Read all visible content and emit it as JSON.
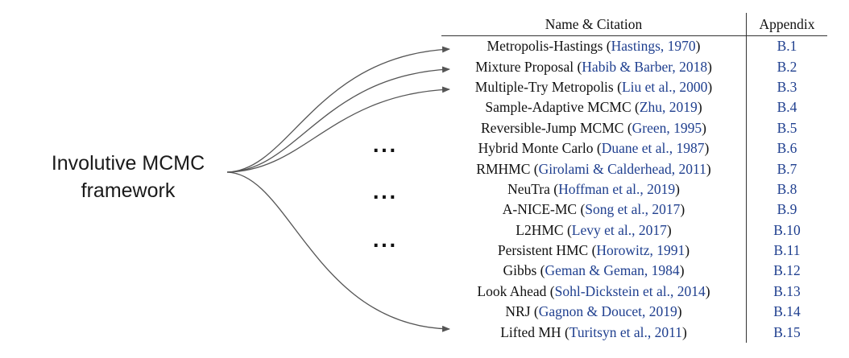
{
  "framework": {
    "line1": "Involutive MCMC",
    "line2": "framework"
  },
  "ellipsis": "...",
  "table": {
    "headers": {
      "name": "Name & Citation",
      "appendix": "Appendix"
    },
    "rows": [
      {
        "method": "Metropolis-Hastings",
        "citation": "Hastings, 1970",
        "appendix": "B.1"
      },
      {
        "method": "Mixture Proposal",
        "citation": "Habib & Barber, 2018",
        "appendix": "B.2"
      },
      {
        "method": "Multiple-Try Metropolis",
        "citation": "Liu et al., 2000",
        "appendix": "B.3"
      },
      {
        "method": "Sample-Adaptive MCMC",
        "citation": "Zhu, 2019",
        "appendix": "B.4"
      },
      {
        "method": "Reversible-Jump MCMC",
        "citation": "Green, 1995",
        "appendix": "B.5"
      },
      {
        "method": "Hybrid Monte Carlo",
        "citation": "Duane et al., 1987",
        "appendix": "B.6"
      },
      {
        "method": "RMHMC",
        "citation": "Girolami & Calderhead, 2011",
        "appendix": "B.7"
      },
      {
        "method": "NeuTra",
        "citation": "Hoffman et al., 2019",
        "appendix": "B.8"
      },
      {
        "method": "A-NICE-MC",
        "citation": "Song et al., 2017",
        "appendix": "B.9"
      },
      {
        "method": "L2HMC",
        "citation": "Levy et al., 2017",
        "appendix": "B.10"
      },
      {
        "method": "Persistent HMC",
        "citation": "Horowitz, 1991",
        "appendix": "B.11"
      },
      {
        "method": "Gibbs",
        "citation": "Geman & Geman, 1984",
        "appendix": "B.12"
      },
      {
        "method": "Look Ahead",
        "citation": "Sohl-Dickstein et al., 2014",
        "appendix": "B.13"
      },
      {
        "method": "NRJ",
        "citation": "Gagnon & Doucet, 2019",
        "appendix": "B.14"
      },
      {
        "method": "Lifted MH",
        "citation": "Turitsyn et al., 2011",
        "appendix": "B.15"
      }
    ]
  }
}
